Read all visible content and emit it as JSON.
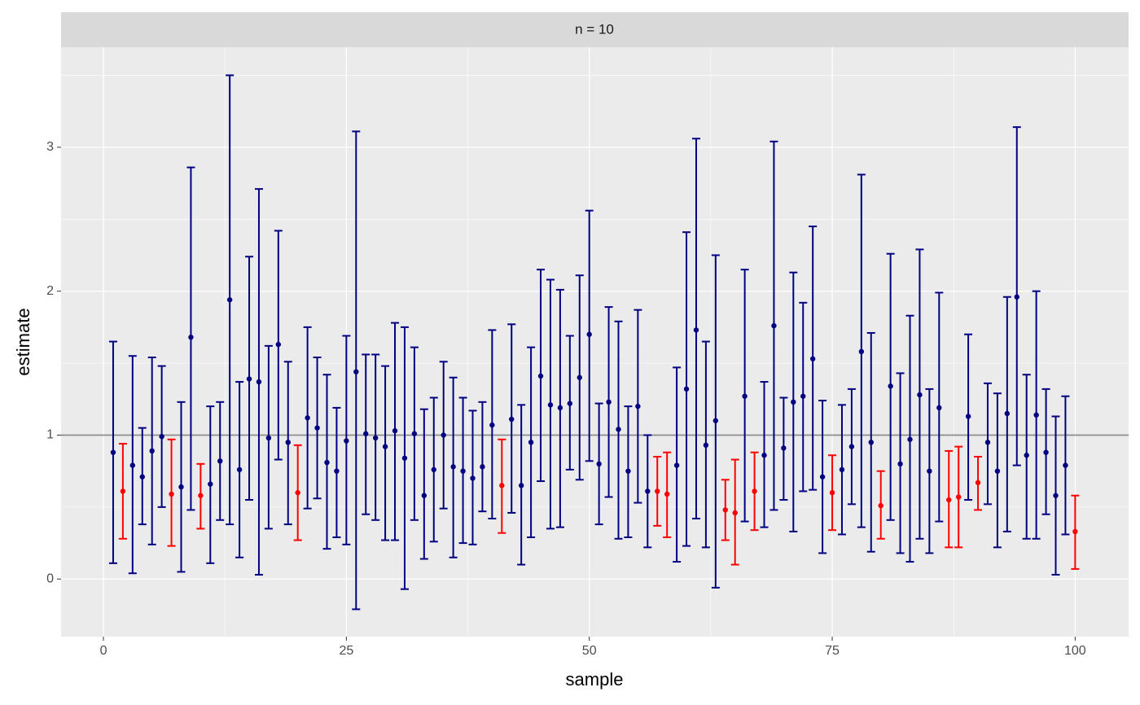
{
  "chart_data": {
    "type": "errorbar",
    "facet_label": "n = 10",
    "x_label": "sample",
    "y_label": "estimate",
    "x": [
      1,
      2,
      3,
      4,
      5,
      6,
      7,
      8,
      9,
      10,
      11,
      12,
      13,
      14,
      15,
      16,
      17,
      18,
      19,
      20,
      21,
      22,
      23,
      24,
      25,
      26,
      27,
      28,
      29,
      30,
      31,
      32,
      33,
      34,
      35,
      36,
      37,
      38,
      39,
      40,
      41,
      42,
      43,
      44,
      45,
      46,
      47,
      48,
      49,
      50,
      51,
      52,
      53,
      54,
      55,
      56,
      57,
      58,
      59,
      60,
      61,
      62,
      63,
      64,
      65,
      66,
      67,
      68,
      69,
      70,
      71,
      72,
      73,
      74,
      75,
      76,
      77,
      78,
      79,
      80,
      81,
      82,
      83,
      84,
      85,
      86,
      87,
      88,
      89,
      90,
      91,
      92,
      93,
      94,
      95,
      96,
      97,
      98,
      99,
      100
    ],
    "values": [
      0.88,
      0.61,
      0.79,
      0.71,
      0.89,
      0.99,
      0.59,
      0.64,
      1.68,
      0.58,
      0.66,
      0.82,
      1.94,
      0.76,
      1.39,
      1.37,
      0.98,
      1.63,
      0.95,
      0.6,
      1.12,
      1.05,
      0.81,
      0.75,
      0.96,
      1.44,
      1.01,
      0.98,
      0.92,
      1.03,
      0.84,
      1.01,
      0.58,
      0.76,
      1.0,
      0.78,
      0.75,
      0.7,
      0.78,
      1.07,
      0.65,
      1.11,
      0.65,
      0.95,
      1.41,
      1.21,
      1.19,
      1.22,
      1.4,
      1.7,
      0.8,
      1.23,
      1.04,
      0.75,
      1.2,
      0.61,
      0.61,
      0.59,
      0.79,
      1.32,
      1.73,
      0.93,
      1.1,
      0.48,
      0.46,
      1.27,
      0.61,
      0.86,
      1.76,
      0.91,
      1.23,
      1.27,
      1.53,
      0.71,
      0.6,
      0.76,
      0.92,
      1.58,
      0.95,
      0.51,
      1.34,
      0.8,
      0.97,
      1.28,
      0.75,
      1.19,
      0.55,
      0.57,
      1.13,
      0.67,
      0.95,
      0.75,
      1.15,
      1.96,
      0.86,
      1.14,
      0.88,
      0.58,
      0.79,
      0.33
    ],
    "lower": [
      0.11,
      0.28,
      0.04,
      0.38,
      0.24,
      0.5,
      0.23,
      0.05,
      0.48,
      0.35,
      0.11,
      0.41,
      0.38,
      0.15,
      0.55,
      0.03,
      0.35,
      0.83,
      0.38,
      0.27,
      0.49,
      0.56,
      0.21,
      0.29,
      0.24,
      -0.21,
      0.45,
      0.41,
      0.27,
      0.27,
      -0.07,
      0.41,
      0.14,
      0.26,
      0.49,
      0.15,
      0.25,
      0.24,
      0.47,
      0.42,
      0.32,
      0.46,
      0.1,
      0.29,
      0.68,
      0.35,
      0.36,
      0.76,
      0.69,
      0.82,
      0.38,
      0.57,
      0.28,
      0.29,
      0.53,
      0.22,
      0.37,
      0.29,
      0.12,
      0.23,
      0.42,
      0.22,
      -0.06,
      0.27,
      0.1,
      0.4,
      0.34,
      0.36,
      0.48,
      0.55,
      0.33,
      0.61,
      0.62,
      0.18,
      0.34,
      0.31,
      0.52,
      0.36,
      0.19,
      0.28,
      0.41,
      0.18,
      0.12,
      0.28,
      0.18,
      0.4,
      0.22,
      0.22,
      0.55,
      0.48,
      0.52,
      0.22,
      0.33,
      0.79,
      0.28,
      0.28,
      0.45,
      0.03,
      0.31,
      0.07
    ],
    "upper": [
      1.65,
      0.94,
      1.55,
      1.05,
      1.54,
      1.48,
      0.97,
      1.23,
      2.86,
      0.8,
      1.2,
      1.23,
      3.5,
      1.37,
      2.24,
      2.71,
      1.62,
      2.42,
      1.51,
      0.93,
      1.75,
      1.54,
      1.42,
      1.19,
      1.69,
      3.11,
      1.56,
      1.56,
      1.48,
      1.78,
      1.75,
      1.61,
      1.18,
      1.26,
      1.51,
      1.4,
      1.26,
      1.17,
      1.23,
      1.73,
      0.97,
      1.77,
      1.21,
      1.61,
      2.15,
      2.08,
      2.01,
      1.69,
      2.11,
      2.56,
      1.22,
      1.89,
      1.79,
      1.2,
      1.87,
      1.0,
      0.85,
      0.88,
      1.47,
      2.41,
      3.06,
      1.65,
      2.25,
      0.69,
      0.83,
      2.15,
      0.88,
      1.37,
      3.04,
      1.26,
      2.13,
      1.92,
      2.45,
      1.24,
      0.86,
      1.21,
      1.32,
      2.81,
      1.71,
      0.75,
      2.26,
      1.43,
      1.83,
      2.29,
      1.32,
      1.99,
      0.89,
      0.92,
      1.7,
      0.85,
      1.36,
      1.29,
      1.96,
      3.14,
      1.42,
      2.0,
      1.32,
      1.13,
      1.27,
      0.58
    ],
    "color": "#000080",
    "miss_color": "#ff0000",
    "reference_line": 1,
    "reference_color": "#8c8c8c",
    "xlim": [
      -4.36,
      105.5
    ],
    "ylim": [
      -0.4,
      3.695
    ],
    "xticks": [
      0,
      25,
      50,
      75,
      100
    ],
    "yticks": [
      0,
      1,
      2,
      3
    ],
    "grid": true
  }
}
